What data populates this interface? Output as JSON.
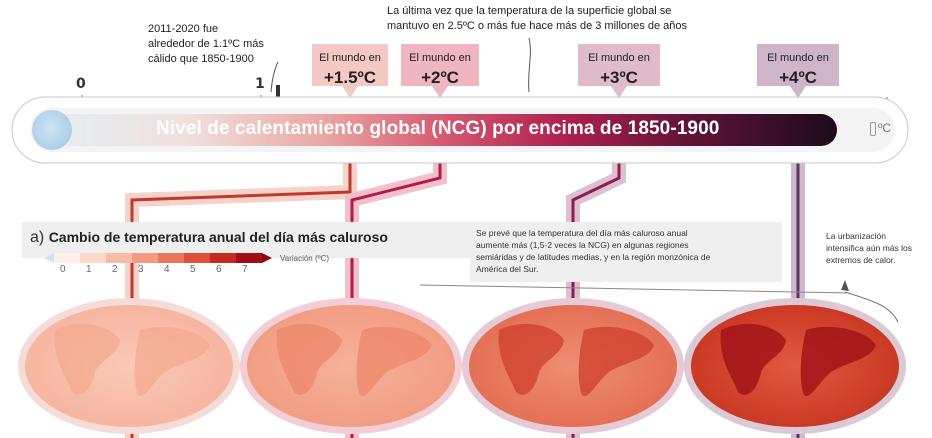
{
  "annotations": {
    "hist_note": "2011-2020 fue\nalrededor de 1.1ºC más\ncálido que 1850-1900",
    "pliocene_note": "La última vez que la temperatura de la superficie global se\nmantuvo en 2.5ºC o más fue hace más de 3 millones de años"
  },
  "scale": {
    "tick_labels": [
      "0",
      "1"
    ],
    "unit_icon_label": "ºC",
    "bar_title": "Nivel de calentamiento global (NCG) por encima de 1850-1900"
  },
  "levels": [
    {
      "prefix": "El mundo en",
      "value": "+1.5ºC",
      "color": "#f4c9c4"
    },
    {
      "prefix": "El mundo en",
      "value": "+2ºC",
      "color": "#efb6c0"
    },
    {
      "prefix": "El mundo en",
      "value": "+3ºC",
      "color": "#e0bccb"
    },
    {
      "prefix": "El mundo en",
      "value": "+4ºC",
      "color": "#cfb5c9"
    }
  ],
  "panel": {
    "letter": "a)",
    "title": "Cambio de temperatura anual del día más caluroso",
    "legend_labels": [
      "0",
      "1",
      "2",
      "3",
      "4",
      "5",
      "6",
      "7"
    ],
    "legend_unit": "Variación (ºC)",
    "legend_colors": [
      "#fdf1ea",
      "#fbd9c9",
      "#f8bca6",
      "#f39b80",
      "#ec765c",
      "#de4f3a",
      "#c52a21",
      "#9f1016"
    ],
    "note_right": "Se prevé que la temperatura del día más caluroso anual\naumente más (1,5-2 veces la NCG) en algunas regiones\nsemiáridas y de latitudes medias, y en la región monzónica de\nAmérica del Sur.",
    "note_urban": "La urbanización\nintensifica aún más los\nextremos de calor."
  },
  "colors": {
    "line_15": "#c0392b",
    "line_2": "#b5194a",
    "line_3": "#8e1b52",
    "line_4": "#5a3566"
  }
}
